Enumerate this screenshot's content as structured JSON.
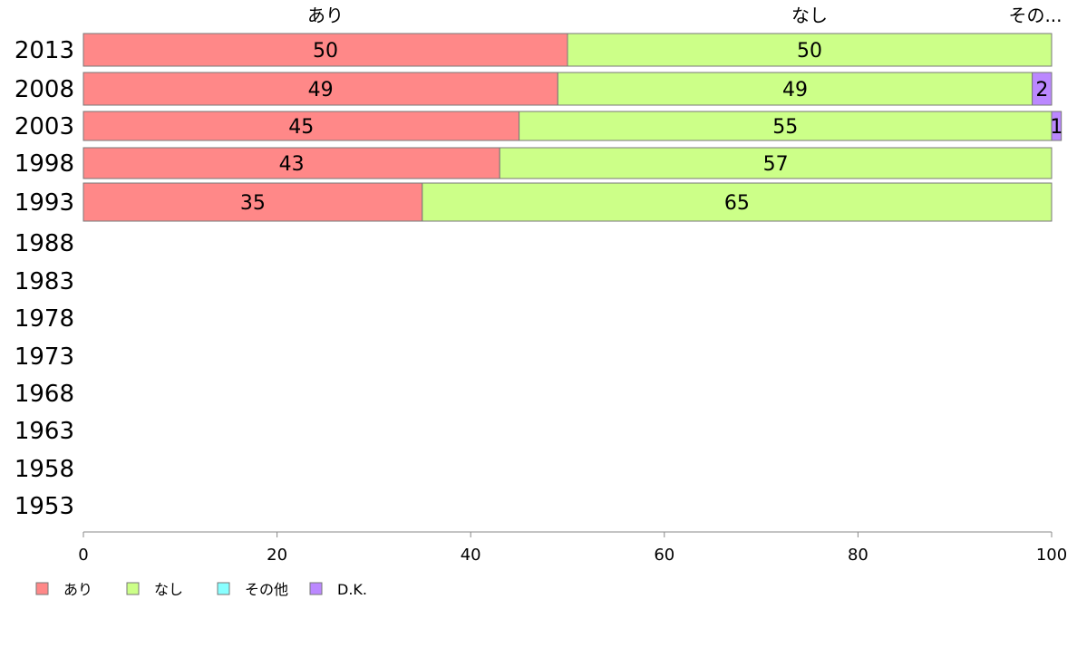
{
  "chart_data": {
    "type": "bar",
    "orientation": "horizontal",
    "stacked": true,
    "categories": [
      "2013",
      "2008",
      "2003",
      "1998",
      "1993",
      "1988",
      "1983",
      "1978",
      "1973",
      "1968",
      "1963",
      "1958",
      "1953"
    ],
    "series": [
      {
        "name": "あり",
        "color": "#ff8888",
        "values": [
          50,
          49,
          45,
          43,
          35,
          null,
          null,
          null,
          null,
          null,
          null,
          null,
          null
        ]
      },
      {
        "name": "なし",
        "color": "#ccff88",
        "values": [
          50,
          49,
          55,
          57,
          65,
          null,
          null,
          null,
          null,
          null,
          null,
          null,
          null
        ]
      },
      {
        "name": "その他",
        "color": "#88ffff",
        "values": [
          0,
          0,
          0,
          0,
          0,
          null,
          null,
          null,
          null,
          null,
          null,
          null,
          null
        ]
      },
      {
        "name": "D.K.",
        "color": "#bb88ff",
        "values": [
          0,
          2,
          1,
          0,
          0,
          null,
          null,
          null,
          null,
          null,
          null,
          null,
          null
        ]
      }
    ],
    "top_labels": [
      "あり",
      "なし",
      "その..."
    ],
    "xlim": [
      0,
      100
    ],
    "xticks": [
      0,
      20,
      40,
      60,
      80,
      100
    ],
    "legend": "bottom-left",
    "grid": false
  }
}
